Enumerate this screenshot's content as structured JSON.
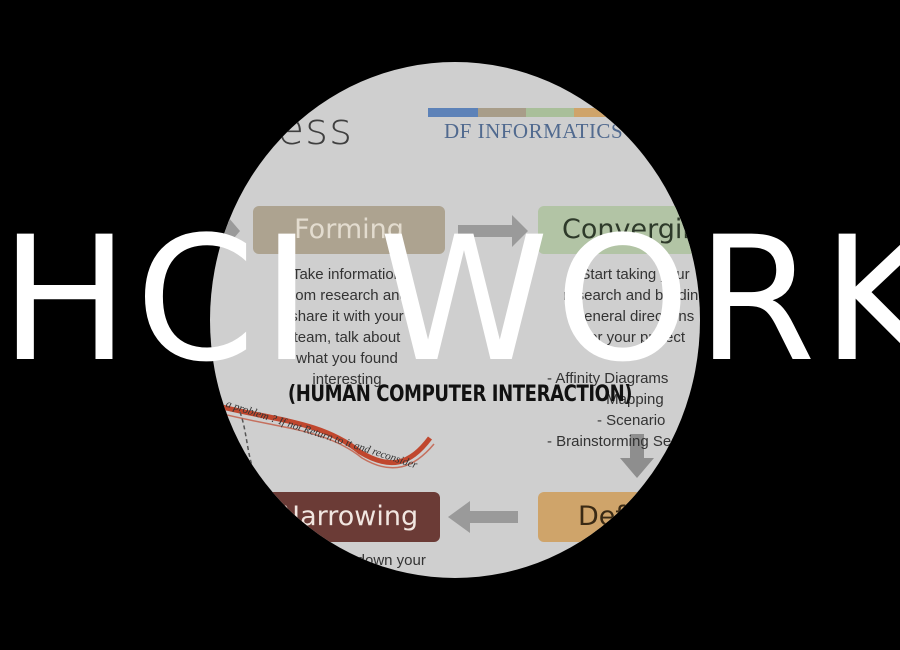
{
  "photo": {
    "title_fragment": "ocess",
    "brand": "DF INFORMATICS",
    "brand_colors": [
      "#5d82b8",
      "#a89d89",
      "#a9bf9a",
      "#cfa46a"
    ],
    "steps": {
      "forming": "Forming",
      "converging": "Converging",
      "narrowing": "Narrowing",
      "defining": "Defi"
    },
    "forming_text": [
      "Take information",
      "from research and",
      "share it with your",
      "team, talk about",
      "what you found",
      "interesting"
    ],
    "converging_text": [
      "Start taking your",
      "research and building",
      "general directions",
      "for your project"
    ],
    "converging_list": [
      "- Affinity Diagrams",
      "- Mapping",
      "- Scenario",
      "- Brainstorming Sessions"
    ],
    "narrowing_text": "Narrow down your",
    "annotation": "a problem ? If not Return to it and reconsider"
  },
  "headline": "HCI WORK",
  "subheadline": "(HUMAN COMPUTER INTERACTION)"
}
